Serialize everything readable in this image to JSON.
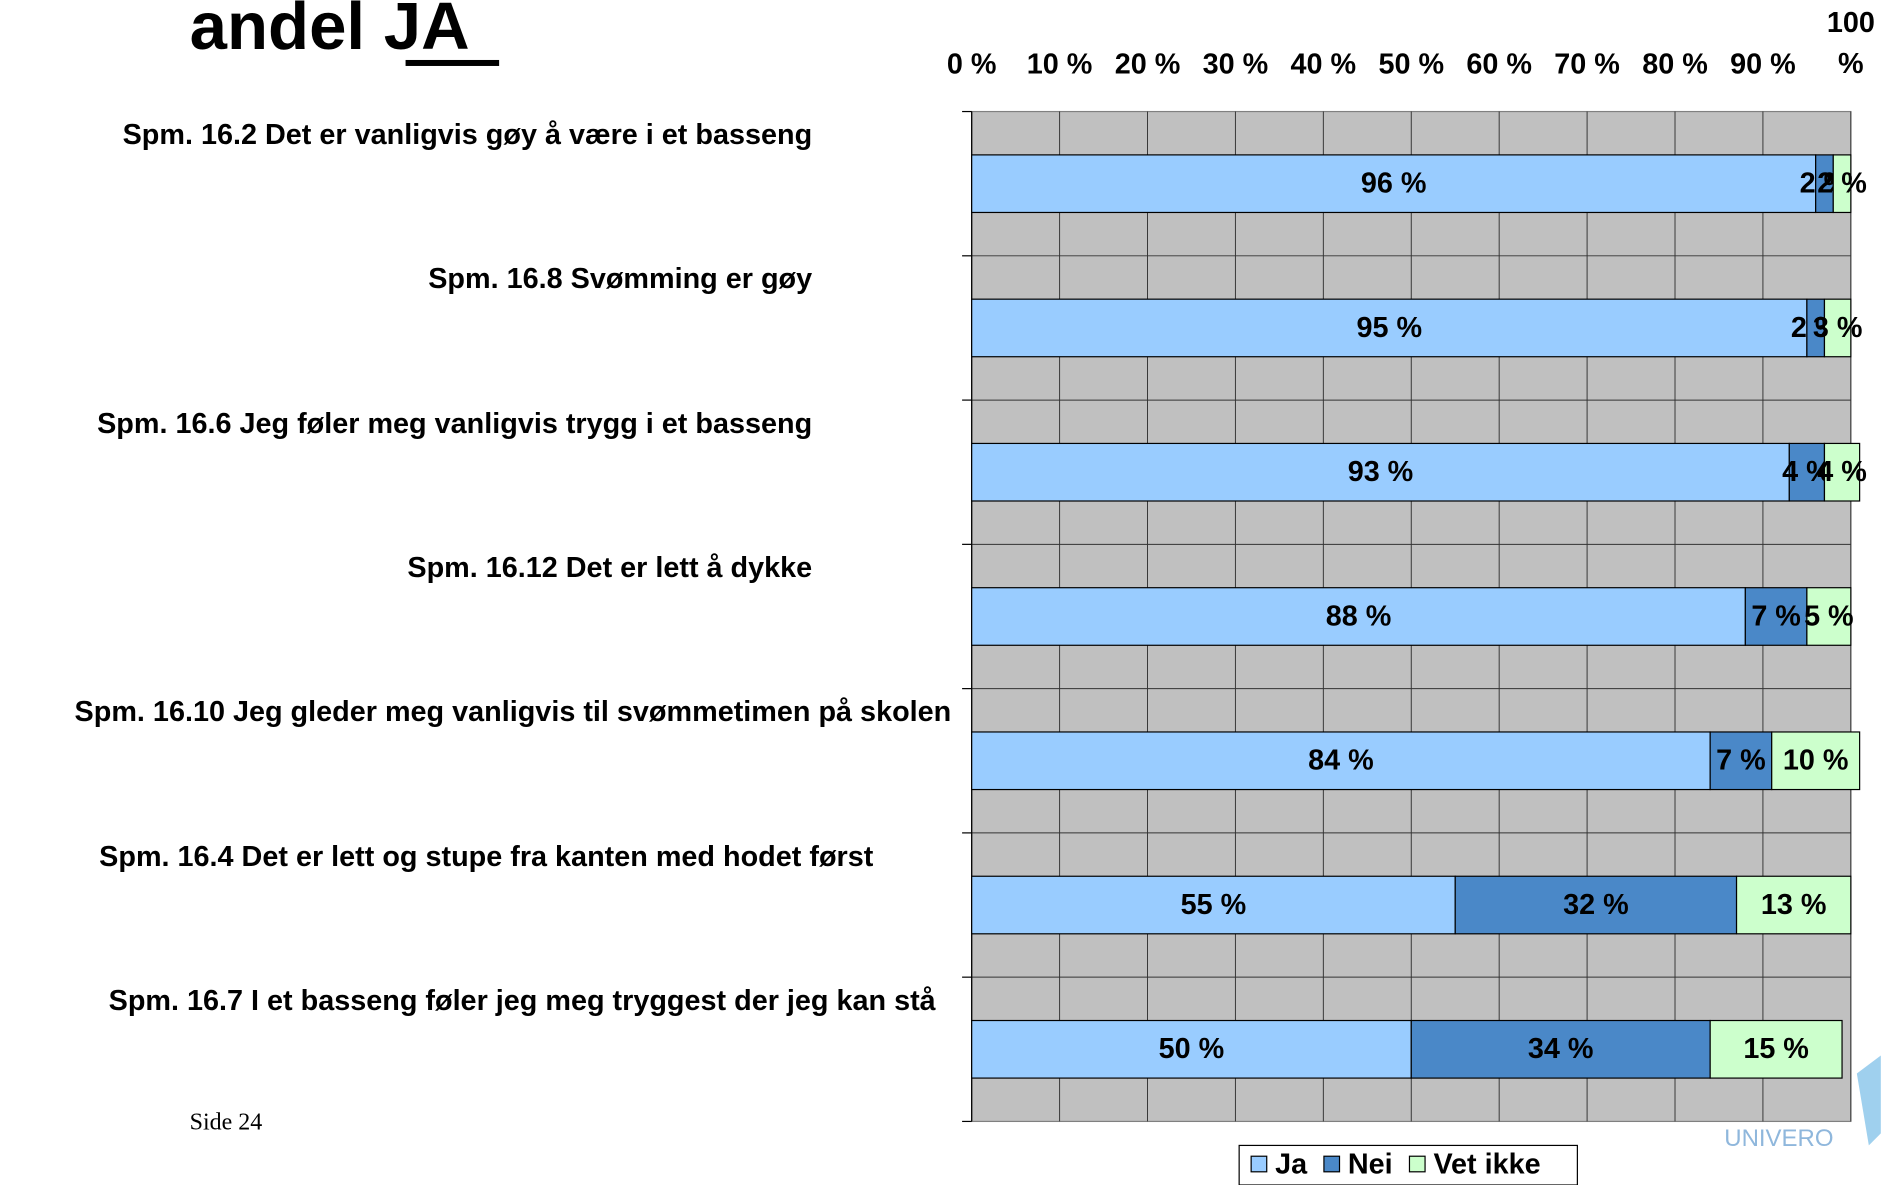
{
  "title": "andel JA",
  "footer": "Side 24",
  "logo": "UNIVERO",
  "chart_data": {
    "type": "stacked-barh",
    "categories": [
      "Spm. 16.2 Det er vanligvis gøy å være i et basseng",
      "Spm. 16.8 Svømming er gøy",
      "Spm. 16.6 Jeg føler meg vanligvis trygg i et basseng",
      "Spm. 16.12 Det er lett å dykke",
      "Spm. 16.10 Jeg gleder meg vanligvis til svømmetimen på skolen",
      "Spm. 16.4 Det er lett og stupe fra kanten med hodet først",
      "Spm. 16.7 I et basseng føler jeg meg tryggest der jeg kan stå"
    ],
    "series": [
      {
        "name": "Ja",
        "color": "#99ccff",
        "values": [
          96,
          95,
          93,
          88,
          84,
          55,
          50
        ],
        "value_labels": [
          "96 %",
          "95 %",
          "93 %",
          "88 %",
          "84 %",
          "55 %",
          "50 %"
        ]
      },
      {
        "name": "Nei",
        "color": "#4a88c8",
        "values": [
          2,
          2,
          4,
          7,
          7,
          32,
          34
        ],
        "value_labels": [
          "2 %",
          "2 %",
          "4 %",
          "7 %",
          "7 %",
          "32 %",
          "34 %"
        ]
      },
      {
        "name": "Vet ikke",
        "color": "#ccffcc",
        "values": [
          2,
          3,
          4,
          5,
          10,
          13,
          15
        ],
        "value_labels": [
          "2 %",
          "3 %",
          "4 %",
          "5 %",
          "10 %",
          "13 %",
          "15 %"
        ]
      }
    ],
    "xlim": [
      0,
      100
    ],
    "xticks": [
      {
        "value": 0,
        "label": "0 %"
      },
      {
        "value": 10,
        "label": "10 %"
      },
      {
        "value": 20,
        "label": "20 %"
      },
      {
        "value": 30,
        "label": "30 %"
      },
      {
        "value": 40,
        "label": "40 %"
      },
      {
        "value": 50,
        "label": "50 %"
      },
      {
        "value": 60,
        "label": "60 %"
      },
      {
        "value": 70,
        "label": "70 %"
      },
      {
        "value": 80,
        "label": "80 %"
      },
      {
        "value": 90,
        "label": "90 %"
      },
      {
        "value": 100,
        "label": "100 %"
      }
    ],
    "grid": true,
    "legend": "bottom"
  }
}
